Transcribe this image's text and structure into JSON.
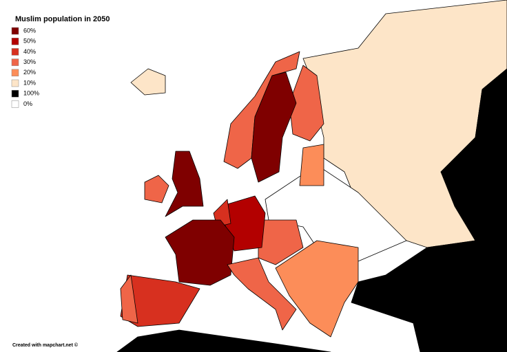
{
  "title": "Muslim population in 2050",
  "legend": {
    "items": [
      {
        "label": "60%",
        "color": "#7f0000"
      },
      {
        "label": "50%",
        "color": "#b30000"
      },
      {
        "label": "40%",
        "color": "#d7301f"
      },
      {
        "label": "30%",
        "color": "#ef6548"
      },
      {
        "label": "20%",
        "color": "#fc8d59"
      },
      {
        "label": "10%",
        "color": "#fde5c8"
      },
      {
        "label": "100%",
        "color": "#000000"
      },
      {
        "label": "0%",
        "color": "#ffffff"
      }
    ]
  },
  "credit": "Created with mapchart.net ©"
}
